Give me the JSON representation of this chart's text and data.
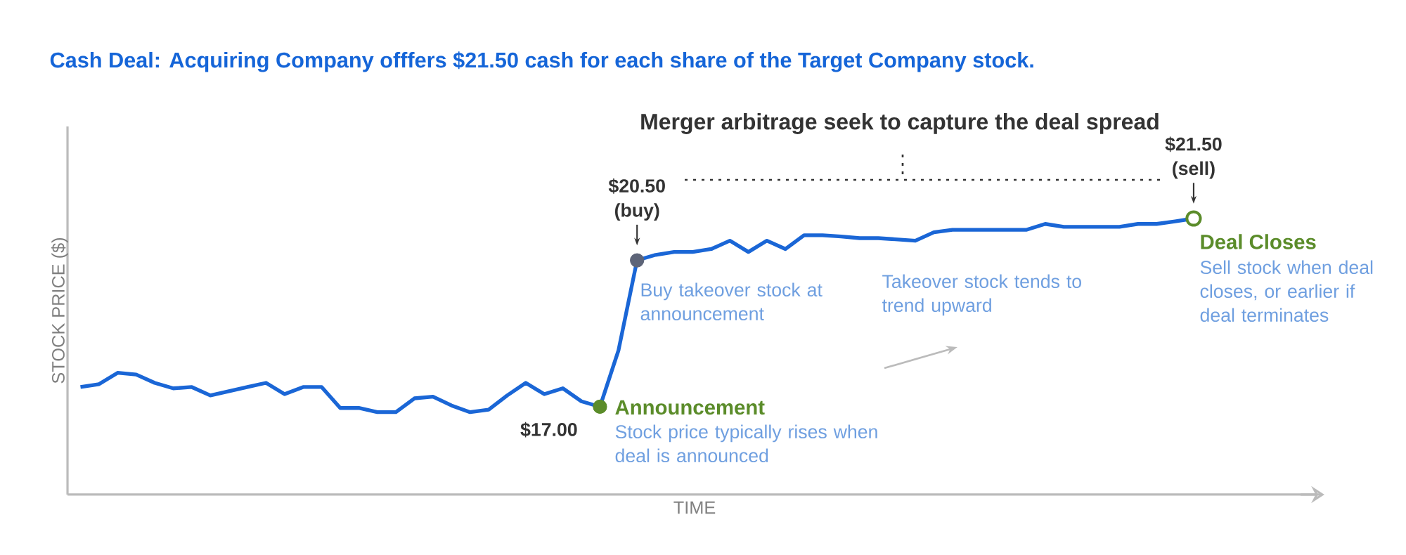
{
  "chart_data": {
    "type": "line",
    "title": "Cash Deal: Acquiring Company offfers $21.50 cash for each share of the Target Company stock.",
    "xlabel": "TIME",
    "ylabel": "STOCK PRICE ($)",
    "categories": [
      null,
      null,
      null,
      null,
      null,
      null,
      null,
      null,
      null,
      null,
      null,
      null,
      null,
      null,
      null,
      null,
      null,
      null,
      null,
      null,
      null,
      null,
      null,
      null,
      null,
      null,
      null,
      null,
      null,
      null,
      null,
      null,
      null,
      null,
      null,
      null,
      null,
      null,
      null,
      null,
      null,
      null,
      null,
      null,
      null,
      null,
      null,
      null,
      null,
      null,
      null,
      null,
      null,
      null,
      null,
      null,
      null,
      null,
      null,
      null,
      null
    ],
    "ylim": [
      14.9,
      23.7
    ],
    "tick_labels": false,
    "series": [
      {
        "color": "#1a66d6",
        "values": [
          17.47,
          17.54,
          17.81,
          17.77,
          17.57,
          17.44,
          17.47,
          17.27,
          17.37,
          17.47,
          17.57,
          17.3,
          17.47,
          17.47,
          16.97,
          16.97,
          16.87,
          16.87,
          17.2,
          17.24,
          17.03,
          16.87,
          16.93,
          17.27,
          17.57,
          17.3,
          17.44,
          17.13,
          17.0,
          18.35,
          20.5,
          20.63,
          20.7,
          20.7,
          20.77,
          20.97,
          20.7,
          20.97,
          20.77,
          21.1,
          21.1,
          21.07,
          21.03,
          21.03,
          21.0,
          20.97,
          21.17,
          21.23,
          21.23,
          21.23,
          21.23,
          21.23,
          21.37,
          21.3,
          21.3,
          21.3,
          21.3,
          21.37,
          21.37,
          21.43,
          21.5
        ],
        "value_labels": [
          null,
          null,
          null,
          null,
          null,
          null,
          null,
          null,
          null,
          null,
          null,
          null,
          null,
          null,
          null,
          null,
          null,
          null,
          null,
          null,
          null,
          null,
          null,
          null,
          null,
          null,
          null,
          null,
          "$17.00",
          null,
          "$20.50 (buy)",
          null,
          null,
          null,
          null,
          null,
          null,
          null,
          null,
          null,
          null,
          null,
          null,
          null,
          null,
          null,
          null,
          null,
          null,
          null,
          null,
          null,
          null,
          null,
          null,
          null,
          null,
          null,
          null,
          null,
          "$21.50 (sell)"
        ]
      }
    ],
    "annotations": [
      "Merger arbitrage seek to capture the deal spread",
      "Buy takeover stock at announcement",
      "Takeover stock tends to trend upward",
      "Announcement",
      "Stock price typically rises when deal is announced",
      "Deal Closes",
      "Sell stock when deal closes, or earlier if deal terminates"
    ]
  }
}
